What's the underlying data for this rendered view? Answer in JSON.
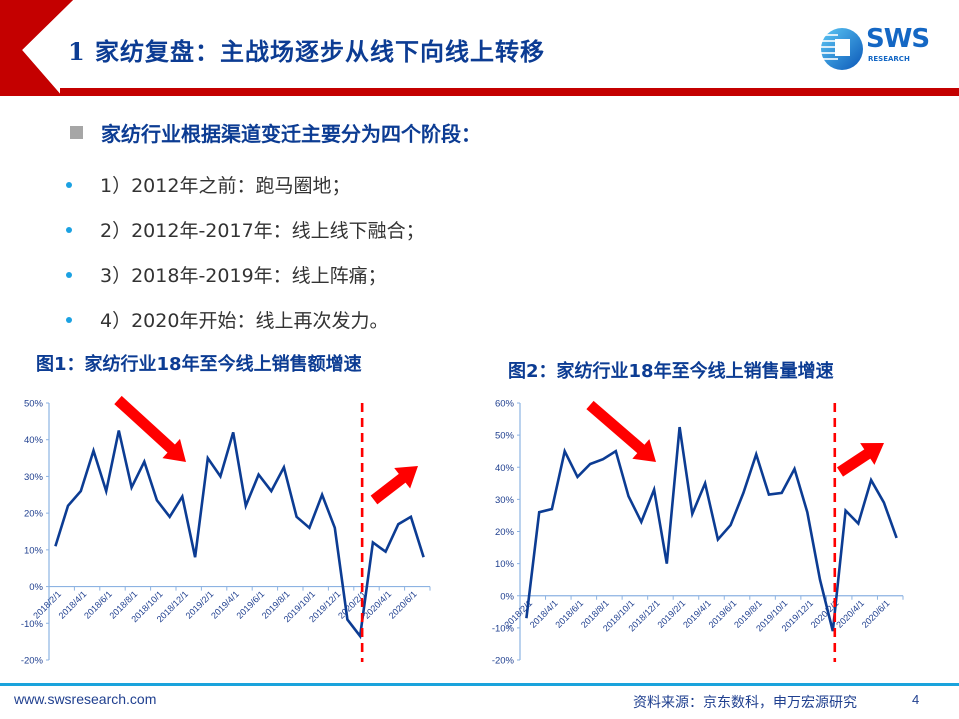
{
  "header": {
    "title": "1 家纺复盘：主战场逐步从线下向线上转移",
    "logo_text": "SWS",
    "logo_subtext": "RESEARCH",
    "accent_red": "#c40000",
    "title_color": "#0c3c93"
  },
  "content": {
    "heading": "家纺行业根据渠道变迁主要分为四个阶段：",
    "bullets": [
      "1）2012年之前：跑马圈地；",
      "2）2012年-2017年：线上线下融合；",
      "3）2018年-2019年：线上阵痛；",
      "4）2020年开始：线上再次发力。"
    ]
  },
  "figures": [
    {
      "title": "图1：家纺行业18年至今线上销售额增速"
    },
    {
      "title": "图2：家纺行业18年至今线上销售量增速"
    }
  ],
  "footer": {
    "url": "www.swsresearch.com",
    "source": "资料来源：京东数科，申万宏源研究",
    "page": "4"
  },
  "chart_data": [
    {
      "type": "line",
      "title": "图1：家纺行业18年至今线上销售额增速",
      "xlabel": "",
      "ylabel": "",
      "ylim": [
        -0.2,
        0.5
      ],
      "yticks": [
        "-20%",
        "-10%",
        "0%",
        "10%",
        "20%",
        "30%",
        "40%",
        "50%"
      ],
      "xtick_labels": [
        "2018/2/1",
        "2018/4/1",
        "2018/6/1",
        "2018/8/1",
        "2018/10/1",
        "2018/12/1",
        "2019/2/1",
        "2019/4/1",
        "2019/6/1",
        "2019/8/1",
        "2019/10/1",
        "2019/12/1",
        "2020/2/1",
        "2020/4/1",
        "2020/6/1"
      ],
      "x": [
        "2018/2",
        "2018/3",
        "2018/4",
        "2018/5",
        "2018/6",
        "2018/7",
        "2018/8",
        "2018/9",
        "2018/10",
        "2018/11",
        "2018/12",
        "2019/1",
        "2019/2",
        "2019/3",
        "2019/4",
        "2019/5",
        "2019/6",
        "2019/7",
        "2019/8",
        "2019/9",
        "2019/10",
        "2019/11",
        "2019/12",
        "2020/1",
        "2020/2",
        "2020/3",
        "2020/4",
        "2020/5",
        "2020/6",
        "2020/7"
      ],
      "series": [
        {
          "name": "线上销售额增速",
          "color": "#0c3c93",
          "values": [
            0.11,
            0.22,
            0.26,
            0.37,
            0.26,
            0.425,
            0.27,
            0.34,
            0.235,
            0.19,
            0.245,
            0.08,
            0.35,
            0.3,
            0.42,
            0.22,
            0.305,
            0.26,
            0.325,
            0.19,
            0.16,
            0.25,
            0.16,
            -0.09,
            -0.135,
            0.12,
            0.095,
            0.17,
            0.19,
            0.08
          ]
        }
      ],
      "annotations": [
        {
          "type": "arrow-down",
          "color": "#ff0000"
        },
        {
          "type": "vline-dashed",
          "at": "2020/2",
          "color": "#ff0000"
        },
        {
          "type": "arrow-up",
          "color": "#ff0000"
        }
      ],
      "grid": false,
      "legend": "none"
    },
    {
      "type": "line",
      "title": "图2：家纺行业18年至今线上销售量增速",
      "xlabel": "",
      "ylabel": "",
      "ylim": [
        -0.2,
        0.6
      ],
      "yticks": [
        "-20%",
        "-10%",
        "0%",
        "10%",
        "20%",
        "30%",
        "40%",
        "50%",
        "60%"
      ],
      "xtick_labels": [
        "2018/2/1",
        "2018/4/1",
        "2018/6/1",
        "2018/8/1",
        "2018/10/1",
        "2018/12/1",
        "2019/2/1",
        "2019/4/1",
        "2019/6/1",
        "2019/8/1",
        "2019/10/1",
        "2019/12/1",
        "2020/2/1",
        "2020/4/1",
        "2020/6/1"
      ],
      "x": [
        "2018/2",
        "2018/3",
        "2018/4",
        "2018/5",
        "2018/6",
        "2018/7",
        "2018/8",
        "2018/9",
        "2018/10",
        "2018/11",
        "2018/12",
        "2019/1",
        "2019/2",
        "2019/3",
        "2019/4",
        "2019/5",
        "2019/6",
        "2019/7",
        "2019/8",
        "2019/9",
        "2019/10",
        "2019/11",
        "2019/12",
        "2020/1",
        "2020/2",
        "2020/3",
        "2020/4",
        "2020/5",
        "2020/6",
        "2020/7"
      ],
      "series": [
        {
          "name": "线上销售量增速",
          "color": "#0c3c93",
          "values": [
            -0.07,
            0.26,
            0.27,
            0.45,
            0.37,
            0.41,
            0.425,
            0.45,
            0.31,
            0.23,
            0.33,
            0.1,
            0.525,
            0.255,
            0.35,
            0.175,
            0.22,
            0.32,
            0.44,
            0.315,
            0.32,
            0.395,
            0.26,
            0.05,
            -0.11,
            0.265,
            0.225,
            0.36,
            0.29,
            0.18
          ]
        }
      ],
      "annotations": [
        {
          "type": "arrow-down",
          "color": "#ff0000"
        },
        {
          "type": "vline-dashed",
          "at": "2020/2",
          "color": "#ff0000"
        },
        {
          "type": "arrow-up",
          "color": "#ff0000"
        }
      ],
      "grid": false,
      "legend": "none"
    }
  ]
}
